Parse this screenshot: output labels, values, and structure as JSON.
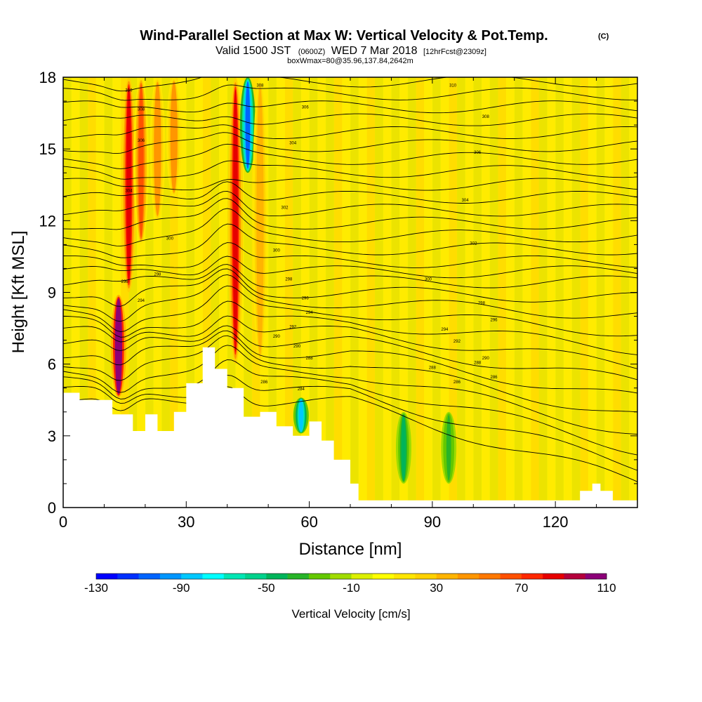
{
  "title": {
    "main": "Wind-Parallel Section at Max W: Vertical Velocity & Pot.Temp.",
    "copyright": "(C)",
    "valid": "Valid 1500 JST",
    "zulu": "(0600Z)",
    "date": "WED 7 Mar 2018",
    "forecast": "[12hrFcst@2309z]",
    "box": "boxWmax=80@35.96,137.84,2642m"
  },
  "chart_data": {
    "type": "heatmap",
    "xlabel": "Distance [nm]",
    "ylabel": "Height [Kft MSL]",
    "xlim": [
      0,
      140
    ],
    "ylim": [
      0,
      18
    ],
    "x_ticks": [
      0,
      30,
      60,
      90,
      120
    ],
    "y_ticks": [
      0,
      3,
      6,
      9,
      12,
      15,
      18
    ],
    "colorbar": {
      "label": "Vertical Velocity [cm/s]",
      "min": -130,
      "max": 110,
      "step": 10,
      "tick_labels": [
        "-130",
        "-90",
        "-50",
        "-10",
        "30",
        "70",
        "110"
      ],
      "tick_values": [
        -130,
        -90,
        -50,
        -10,
        30,
        70,
        110
      ],
      "colors": [
        "#0000ff",
        "#0030ff",
        "#0064ff",
        "#0096ff",
        "#00c8ff",
        "#00ffff",
        "#00e6b4",
        "#00d28c",
        "#00b45a",
        "#28b428",
        "#64c800",
        "#a0dc00",
        "#dcf000",
        "#ffff00",
        "#ffe600",
        "#ffd200",
        "#ffb400",
        "#ff9600",
        "#ff7800",
        "#ff5000",
        "#ff2800",
        "#e60000",
        "#b4003c",
        "#8c0078"
      ]
    },
    "terrain": [
      [
        0,
        4.8
      ],
      [
        4,
        4.8
      ],
      [
        4,
        4.5
      ],
      [
        12,
        4.5
      ],
      [
        12,
        3.9
      ],
      [
        17,
        3.9
      ],
      [
        17,
        3.2
      ],
      [
        20,
        3.2
      ],
      [
        20,
        3.9
      ],
      [
        23,
        3.9
      ],
      [
        23,
        3.2
      ],
      [
        27,
        3.2
      ],
      [
        27,
        4.0
      ],
      [
        30,
        4.0
      ],
      [
        30,
        5.2
      ],
      [
        34,
        5.2
      ],
      [
        34,
        6.7
      ],
      [
        37,
        6.7
      ],
      [
        37,
        5.8
      ],
      [
        40,
        5.8
      ],
      [
        40,
        5.0
      ],
      [
        44,
        5.0
      ],
      [
        44,
        3.8
      ],
      [
        48,
        3.8
      ],
      [
        48,
        4.0
      ],
      [
        52,
        4.0
      ],
      [
        52,
        3.4
      ],
      [
        56,
        3.4
      ],
      [
        56,
        3.0
      ],
      [
        60,
        3.0
      ],
      [
        60,
        3.6
      ],
      [
        63,
        3.6
      ],
      [
        63,
        2.8
      ],
      [
        66,
        2.8
      ],
      [
        66,
        2.0
      ],
      [
        70,
        2.0
      ],
      [
        70,
        1.0
      ],
      [
        72,
        1.0
      ],
      [
        72,
        0.3
      ],
      [
        126,
        0.3
      ],
      [
        126,
        0.7
      ],
      [
        129,
        0.7
      ],
      [
        129,
        1.0
      ],
      [
        131,
        1.0
      ],
      [
        131,
        0.7
      ],
      [
        134,
        0.7
      ],
      [
        134,
        0.3
      ],
      [
        140,
        0.3
      ]
    ],
    "features": [
      {
        "x": 13.5,
        "y0": 4.6,
        "y1": 8.9,
        "w": -1,
        "value": 110
      },
      {
        "x": 16,
        "y0": 9,
        "y1": 18,
        "w": -1,
        "value": 70
      },
      {
        "x": 19,
        "y0": 11,
        "y1": 18,
        "w": -1,
        "value": 50
      },
      {
        "x": 23,
        "y0": 12,
        "y1": 18,
        "w": -1,
        "value": 40
      },
      {
        "x": 27,
        "y0": 13,
        "y1": 18,
        "w": -1,
        "value": 40
      },
      {
        "x": 42,
        "y0": 6,
        "y1": 18,
        "w": -1,
        "value": 70
      },
      {
        "x": 45,
        "y0": 14,
        "y1": 18,
        "w": -1,
        "value": -90
      },
      {
        "x": 48,
        "y0": 6,
        "y1": 18,
        "w": -1,
        "value": 30
      },
      {
        "x": 58,
        "y0": 3.1,
        "y1": 4.6,
        "w": -1,
        "value": -70
      },
      {
        "x": 83,
        "y0": 1,
        "y1": 4,
        "w": -1,
        "value": -40
      },
      {
        "x": 94,
        "y0": 1,
        "y1": 4,
        "w": -1,
        "value": -30
      }
    ],
    "contour_labels": [
      {
        "x": 16,
        "y": 17.4,
        "text": "310"
      },
      {
        "x": 19,
        "y": 16.6,
        "text": "308"
      },
      {
        "x": 19,
        "y": 15.3,
        "text": "306"
      },
      {
        "x": 16,
        "y": 13.2,
        "text": "304"
      },
      {
        "x": 26,
        "y": 11.2,
        "text": "300"
      },
      {
        "x": 23,
        "y": 9.7,
        "text": "298"
      },
      {
        "x": 15,
        "y": 9.4,
        "text": "296"
      },
      {
        "x": 19,
        "y": 8.6,
        "text": "294"
      },
      {
        "x": 95,
        "y": 17.6,
        "text": "310"
      },
      {
        "x": 103,
        "y": 16.3,
        "text": "308"
      },
      {
        "x": 101,
        "y": 14.8,
        "text": "306"
      },
      {
        "x": 98,
        "y": 12.8,
        "text": "304"
      },
      {
        "x": 100,
        "y": 11.0,
        "text": "302"
      },
      {
        "x": 89,
        "y": 9.5,
        "text": "300"
      },
      {
        "x": 102,
        "y": 8.5,
        "text": "298"
      },
      {
        "x": 105,
        "y": 7.8,
        "text": "296"
      },
      {
        "x": 93,
        "y": 7.4,
        "text": "294"
      },
      {
        "x": 96,
        "y": 6.9,
        "text": "292"
      },
      {
        "x": 103,
        "y": 6.2,
        "text": "290"
      },
      {
        "x": 101,
        "y": 6.0,
        "text": "288"
      },
      {
        "x": 105,
        "y": 5.4,
        "text": "286"
      },
      {
        "x": 90,
        "y": 5.8,
        "text": "288"
      },
      {
        "x": 96,
        "y": 5.2,
        "text": "286"
      },
      {
        "x": 58,
        "y": 4.9,
        "text": "284"
      },
      {
        "x": 49,
        "y": 5.2,
        "text": "286"
      },
      {
        "x": 52,
        "y": 7.1,
        "text": "290"
      },
      {
        "x": 56,
        "y": 7.5,
        "text": "292"
      },
      {
        "x": 60,
        "y": 8.1,
        "text": "294"
      },
      {
        "x": 59,
        "y": 8.7,
        "text": "296"
      },
      {
        "x": 55,
        "y": 9.5,
        "text": "298"
      },
      {
        "x": 52,
        "y": 10.7,
        "text": "300"
      },
      {
        "x": 54,
        "y": 12.5,
        "text": "302"
      },
      {
        "x": 56,
        "y": 15.2,
        "text": "304"
      },
      {
        "x": 59,
        "y": 16.7,
        "text": "306"
      },
      {
        "x": 48,
        "y": 17.6,
        "text": "308"
      },
      {
        "x": 60,
        "y": 6.2,
        "text": "288"
      },
      {
        "x": 57,
        "y": 6.7,
        "text": "290"
      }
    ]
  }
}
